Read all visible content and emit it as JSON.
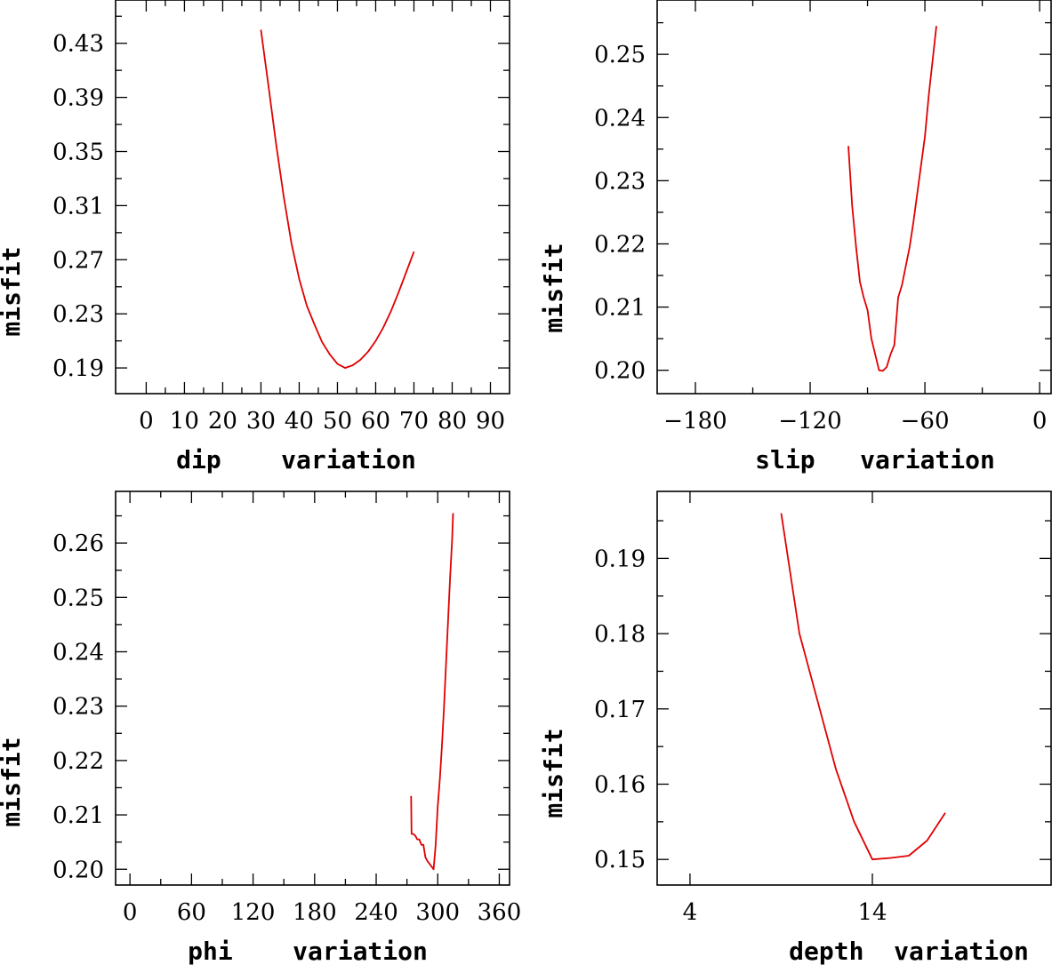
{
  "chart_data": [
    {
      "id": "dip",
      "type": "line",
      "xlabel": "dip    variation",
      "ylabel": "misfit",
      "xlim": [
        -8,
        95
      ],
      "ylim": [
        0.171,
        0.462
      ],
      "xticks": [
        0,
        10,
        20,
        30,
        40,
        50,
        60,
        70,
        80,
        90
      ],
      "xtick_labels": [
        "0",
        "10",
        "20",
        "30",
        "40",
        "50",
        "60",
        "70",
        "80",
        "90"
      ],
      "xminor": [
        5,
        15,
        25,
        35,
        45,
        55,
        65,
        75,
        85
      ],
      "yticks": [
        0.19,
        0.23,
        0.27,
        0.31,
        0.35,
        0.39,
        0.43
      ],
      "ytick_labels": [
        "0.19",
        "0.23",
        "0.27",
        "0.31",
        "0.35",
        "0.39",
        "0.43"
      ],
      "yminor": [
        0.17,
        0.21,
        0.25,
        0.29,
        0.33,
        0.37,
        0.41,
        0.45
      ],
      "series": [
        {
          "name": "misfit",
          "color": "#e00000",
          "x": [
            30,
            32,
            34,
            36,
            38,
            40,
            42,
            44,
            46,
            48,
            50,
            52,
            54,
            56,
            58,
            60,
            62,
            64,
            66,
            68,
            70
          ],
          "y": [
            0.44,
            0.398,
            0.355,
            0.316,
            0.282,
            0.256,
            0.236,
            0.222,
            0.209,
            0.2,
            0.193,
            0.19,
            0.192,
            0.196,
            0.202,
            0.21,
            0.22,
            0.232,
            0.246,
            0.261,
            0.276
          ]
        }
      ]
    },
    {
      "id": "slip",
      "type": "line",
      "xlabel": "slip   variation",
      "ylabel": "misfit",
      "xlim": [
        -200,
        6
      ],
      "ylim": [
        0.1963,
        0.2586
      ],
      "xticks": [
        -180,
        -120,
        -60,
        0
      ],
      "xtick_labels": [
        "−180",
        "−120",
        "−60",
        "0"
      ],
      "xminor": [
        -150,
        -90,
        -30
      ],
      "yticks": [
        0.2,
        0.21,
        0.22,
        0.23,
        0.24,
        0.25
      ],
      "ytick_labels": [
        "0.20",
        "0.21",
        "0.22",
        "0.23",
        "0.24",
        "0.25"
      ],
      "yminor": [
        0.205,
        0.215,
        0.225,
        0.235,
        0.245,
        0.255
      ],
      "series": [
        {
          "name": "misfit",
          "color": "#e00000",
          "x": [
            -100,
            -98,
            -96,
            -94,
            -92,
            -90,
            -88,
            -86,
            -84,
            -82,
            -80,
            -78,
            -76,
            -74,
            -72,
            -70,
            -68,
            -66,
            -64,
            -62,
            -60,
            -58,
            -56,
            -54
          ],
          "y": [
            0.2355,
            0.226,
            0.2195,
            0.214,
            0.2115,
            0.2095,
            0.205,
            0.2025,
            0.2,
            0.1999,
            0.2005,
            0.2025,
            0.204,
            0.2115,
            0.2135,
            0.2165,
            0.2195,
            0.2235,
            0.228,
            0.2325,
            0.237,
            0.2435,
            0.249,
            0.2545
          ]
        }
      ]
    },
    {
      "id": "phi",
      "type": "line",
      "xlabel": "phi    variation",
      "ylabel": "misfit",
      "xlim": [
        -14,
        370
      ],
      "ylim": [
        0.1971,
        0.2695
      ],
      "xticks": [
        0,
        60,
        120,
        180,
        240,
        300,
        360
      ],
      "xtick_labels": [
        "0",
        "60",
        "120",
        "180",
        "240",
        "300",
        "360"
      ],
      "xminor": [
        30,
        90,
        150,
        210,
        270,
        330
      ],
      "yticks": [
        0.2,
        0.21,
        0.22,
        0.23,
        0.24,
        0.25,
        0.26
      ],
      "ytick_labels": [
        "0.20",
        "0.21",
        "0.22",
        "0.23",
        "0.24",
        "0.25",
        "0.26"
      ],
      "yminor": [
        0.205,
        0.215,
        0.225,
        0.235,
        0.245,
        0.255,
        0.265
      ],
      "series": [
        {
          "name": "misfit",
          "color": "#e00000",
          "x": [
            274,
            274.5,
            276,
            278,
            280,
            282,
            284,
            286,
            288,
            290,
            292,
            294,
            296,
            298,
            300,
            302,
            304,
            306,
            308,
            310,
            312,
            314,
            315
          ],
          "y": [
            0.2135,
            0.2065,
            0.2065,
            0.2062,
            0.2055,
            0.2055,
            0.2045,
            0.2045,
            0.2022,
            0.2015,
            0.201,
            0.2005,
            0.2,
            0.2045,
            0.2115,
            0.2165,
            0.2225,
            0.2295,
            0.2375,
            0.2455,
            0.2535,
            0.2605,
            0.2655
          ]
        }
      ]
    },
    {
      "id": "depth",
      "type": "line",
      "xlabel": "depth  variation",
      "ylabel": "misfit",
      "xlim": [
        2.2,
        23.8
      ],
      "ylim": [
        0.1466,
        0.1989
      ],
      "xticks": [
        4,
        14
      ],
      "xtick_labels": [
        "4",
        "14"
      ],
      "xminor": [],
      "yticks": [
        0.15,
        0.16,
        0.17,
        0.18,
        0.19
      ],
      "ytick_labels": [
        "0.15",
        "0.16",
        "0.17",
        "0.18",
        "0.19"
      ],
      "yminor": [
        0.155,
        0.165,
        0.175,
        0.185,
        0.195
      ],
      "series": [
        {
          "name": "misfit",
          "color": "#e00000",
          "x": [
            9,
            10,
            11,
            12,
            13,
            14,
            15,
            16,
            17,
            18
          ],
          "y": [
            0.196,
            0.18,
            0.171,
            0.162,
            0.155,
            0.15,
            0.1502,
            0.1505,
            0.1525,
            0.1562
          ]
        }
      ]
    }
  ]
}
